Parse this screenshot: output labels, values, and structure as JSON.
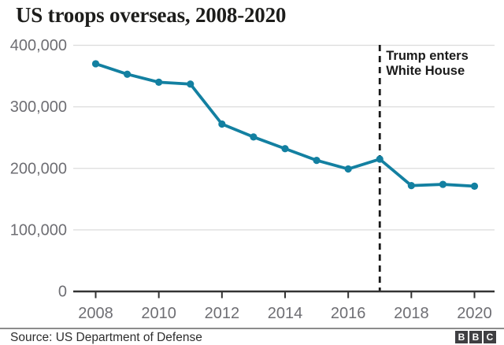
{
  "title": "US troops overseas, 2008-2020",
  "chart_data": {
    "type": "line",
    "title": "US troops overseas, 2008-2020",
    "xlabel": "",
    "ylabel": "",
    "x": [
      2008,
      2009,
      2010,
      2011,
      2012,
      2013,
      2014,
      2015,
      2016,
      2017,
      2018,
      2019,
      2020
    ],
    "series": [
      {
        "name": "US troops overseas",
        "values": [
          370000,
          353000,
          340000,
          337000,
          272000,
          251000,
          232000,
          213000,
          199000,
          215000,
          172000,
          174000,
          171000
        ]
      }
    ],
    "ylim": [
      0,
      400000
    ],
    "y_ticks": [
      {
        "label": "400,000",
        "value": 400000
      },
      {
        "label": "300,000",
        "value": 300000
      },
      {
        "label": "200,000",
        "value": 200000
      },
      {
        "label": "100,000",
        "value": 100000
      },
      {
        "label": "0",
        "value": 0
      }
    ],
    "x_ticks": [
      {
        "label": "2008",
        "value": 2008
      },
      {
        "label": "2010",
        "value": 2010
      },
      {
        "label": "2012",
        "value": 2012
      },
      {
        "label": "2014",
        "value": 2014
      },
      {
        "label": "2016",
        "value": 2016
      },
      {
        "label": "2018",
        "value": 2018
      },
      {
        "label": "2020",
        "value": 2020
      }
    ],
    "grid": "horizontal",
    "legend": "none",
    "annotation": {
      "x": 2017,
      "style": "dashed-vertical-line",
      "lines": [
        "Trump enters",
        "White House"
      ]
    }
  },
  "colors": {
    "line": "#1380A1",
    "axis": "#333333",
    "grid": "#dcdcdc",
    "tick_label": "#6e6e73",
    "annotation": "#1a1a1a",
    "title": "#1d1d1b",
    "divider": "#8c8c8c",
    "logo_bg": "#3f3f42"
  },
  "footer": {
    "source": "Source: US Department of Defense",
    "logo_letters": [
      "B",
      "B",
      "C"
    ]
  }
}
